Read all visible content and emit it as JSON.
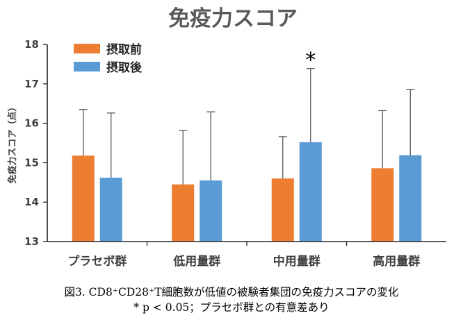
{
  "chart_data": {
    "type": "bar",
    "title": "免疫力スコア",
    "ylabel": "免疫力スコア（点）",
    "xlabel": "",
    "ylim": [
      13,
      18
    ],
    "yticks": [
      "13",
      "14",
      "15",
      "16",
      "17",
      "18"
    ],
    "grid": false,
    "legend_position": "top-left",
    "categories": [
      "プラセボ群",
      "低用量群",
      "中用量群",
      "高用量群"
    ],
    "series": [
      {
        "name": "摂取前",
        "color": "#ED7D31",
        "values": [
          15.18,
          14.45,
          14.6,
          14.86
        ],
        "error_upper": [
          16.35,
          15.82,
          15.66,
          16.32
        ]
      },
      {
        "name": "摂取後",
        "color": "#5B9BD5",
        "values": [
          14.62,
          14.55,
          15.52,
          15.19
        ],
        "error_upper": [
          16.26,
          16.29,
          17.39,
          16.86
        ]
      }
    ],
    "annotations": [
      {
        "text": "*",
        "category_index": 2,
        "series_index": 1
      }
    ]
  },
  "caption": {
    "line1": "図3. CD8⁺CD28⁺T細胞数が低値の被験者集団の免疫力スコアの変化",
    "line2": "* p < 0.05；プラセボ群との有意差あり"
  }
}
